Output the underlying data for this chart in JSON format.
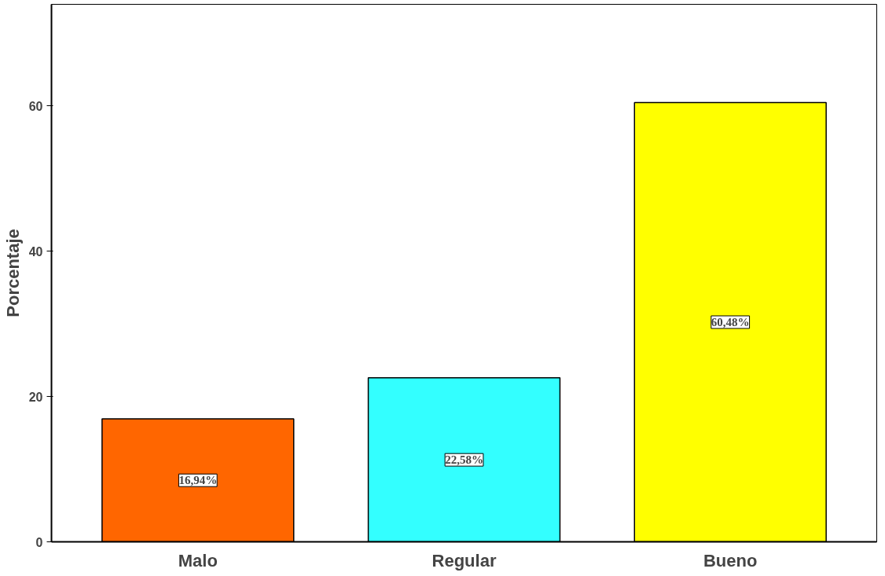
{
  "chart_data": {
    "type": "bar",
    "ylabel": "Porcentaje",
    "categories": [
      "Malo",
      "Regular",
      "Bueno"
    ],
    "values": [
      16.94,
      22.58,
      60.48
    ],
    "colors": [
      "#ff6600",
      "#33ffff",
      "#ffff00"
    ],
    "value_labels": [
      "16,94%",
      "22,58%",
      "60,48%"
    ],
    "ylim": [
      0,
      74
    ],
    "yticks": [
      0,
      20,
      40,
      60
    ],
    "grid": false
  }
}
